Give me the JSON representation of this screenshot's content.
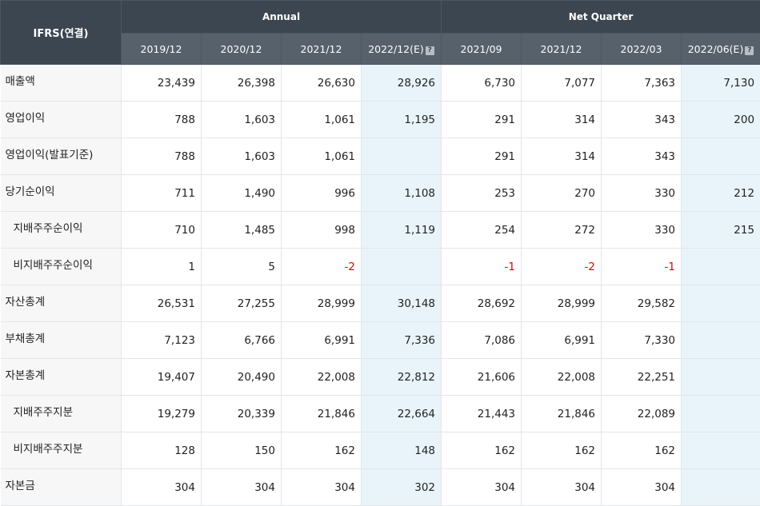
{
  "header": {
    "corner_label": "IFRS(연결)",
    "annual_label": "Annual",
    "quarter_label": "Net Quarter",
    "help_glyph": "?",
    "periods": [
      "2019/12",
      "2020/12",
      "2021/12",
      "2022/12(E)",
      "2021/09",
      "2021/12",
      "2022/03",
      "2022/06(E)"
    ]
  },
  "colors": {
    "header_dark": "#3b4650",
    "header_light": "#56616b",
    "estimate_bg": "#e8f4fa",
    "negative_text": "#e60000"
  },
  "rows": [
    {
      "label": "매출액",
      "sub": false,
      "values": [
        "23,439",
        "26,398",
        "26,630",
        "28,926",
        "6,730",
        "7,077",
        "7,363",
        "7,130"
      ]
    },
    {
      "label": "영업이익",
      "sub": false,
      "values": [
        "788",
        "1,603",
        "1,061",
        "1,195",
        "291",
        "314",
        "343",
        "200"
      ]
    },
    {
      "label": "영업이익(발표기준)",
      "sub": false,
      "values": [
        "788",
        "1,603",
        "1,061",
        "",
        "291",
        "314",
        "343",
        ""
      ]
    },
    {
      "label": "당기순이익",
      "sub": false,
      "values": [
        "711",
        "1,490",
        "996",
        "1,108",
        "253",
        "270",
        "330",
        "212"
      ]
    },
    {
      "label": "지배주주순이익",
      "sub": true,
      "values": [
        "710",
        "1,485",
        "998",
        "1,119",
        "254",
        "272",
        "330",
        "215"
      ]
    },
    {
      "label": "비지배주주순이익",
      "sub": true,
      "values": [
        "1",
        "5",
        "-2",
        "",
        "-1",
        "-2",
        "-1",
        ""
      ]
    },
    {
      "label": "자산총계",
      "sub": false,
      "values": [
        "26,531",
        "27,255",
        "28,999",
        "30,148",
        "28,692",
        "28,999",
        "29,582",
        ""
      ]
    },
    {
      "label": "부채총계",
      "sub": false,
      "values": [
        "7,123",
        "6,766",
        "6,991",
        "7,336",
        "7,086",
        "6,991",
        "7,330",
        ""
      ]
    },
    {
      "label": "자본총계",
      "sub": false,
      "values": [
        "19,407",
        "20,490",
        "22,008",
        "22,812",
        "21,606",
        "22,008",
        "22,251",
        ""
      ]
    },
    {
      "label": "지배주주지분",
      "sub": true,
      "values": [
        "19,279",
        "20,339",
        "21,846",
        "22,664",
        "21,443",
        "21,846",
        "22,089",
        ""
      ]
    },
    {
      "label": "비지배주주지분",
      "sub": true,
      "values": [
        "128",
        "150",
        "162",
        "148",
        "162",
        "162",
        "162",
        ""
      ]
    },
    {
      "label": "자본금",
      "sub": false,
      "values": [
        "304",
        "304",
        "304",
        "302",
        "304",
        "304",
        "304",
        ""
      ]
    }
  ]
}
